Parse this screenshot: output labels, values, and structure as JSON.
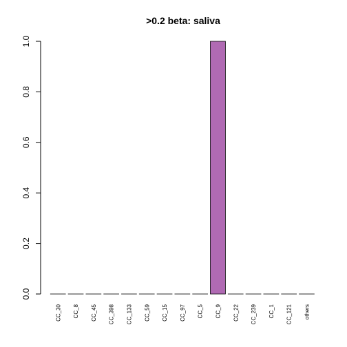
{
  "chart_data": {
    "type": "bar",
    "title": ">0.2 beta:  saliva",
    "categories": [
      "CC_30",
      "CC_8",
      "CC_45",
      "CC_398",
      "CC_133",
      "CC_59",
      "CC_15",
      "CC_97",
      "CC_5",
      "CC_9",
      "CC_22",
      "CC_239",
      "CC_1",
      "CC_121",
      "others"
    ],
    "values": [
      0,
      0,
      0,
      0,
      0,
      0,
      0,
      0,
      0,
      1.0,
      0,
      0,
      0,
      0,
      0
    ],
    "ylim": [
      0,
      1.0
    ],
    "yticks": [
      "0.0",
      "0.2",
      "0.4",
      "0.6",
      "0.8",
      "1.0"
    ],
    "xlabel": "",
    "ylabel": "",
    "bar_color": "#b06ab3",
    "grid": false,
    "legend": "none"
  }
}
